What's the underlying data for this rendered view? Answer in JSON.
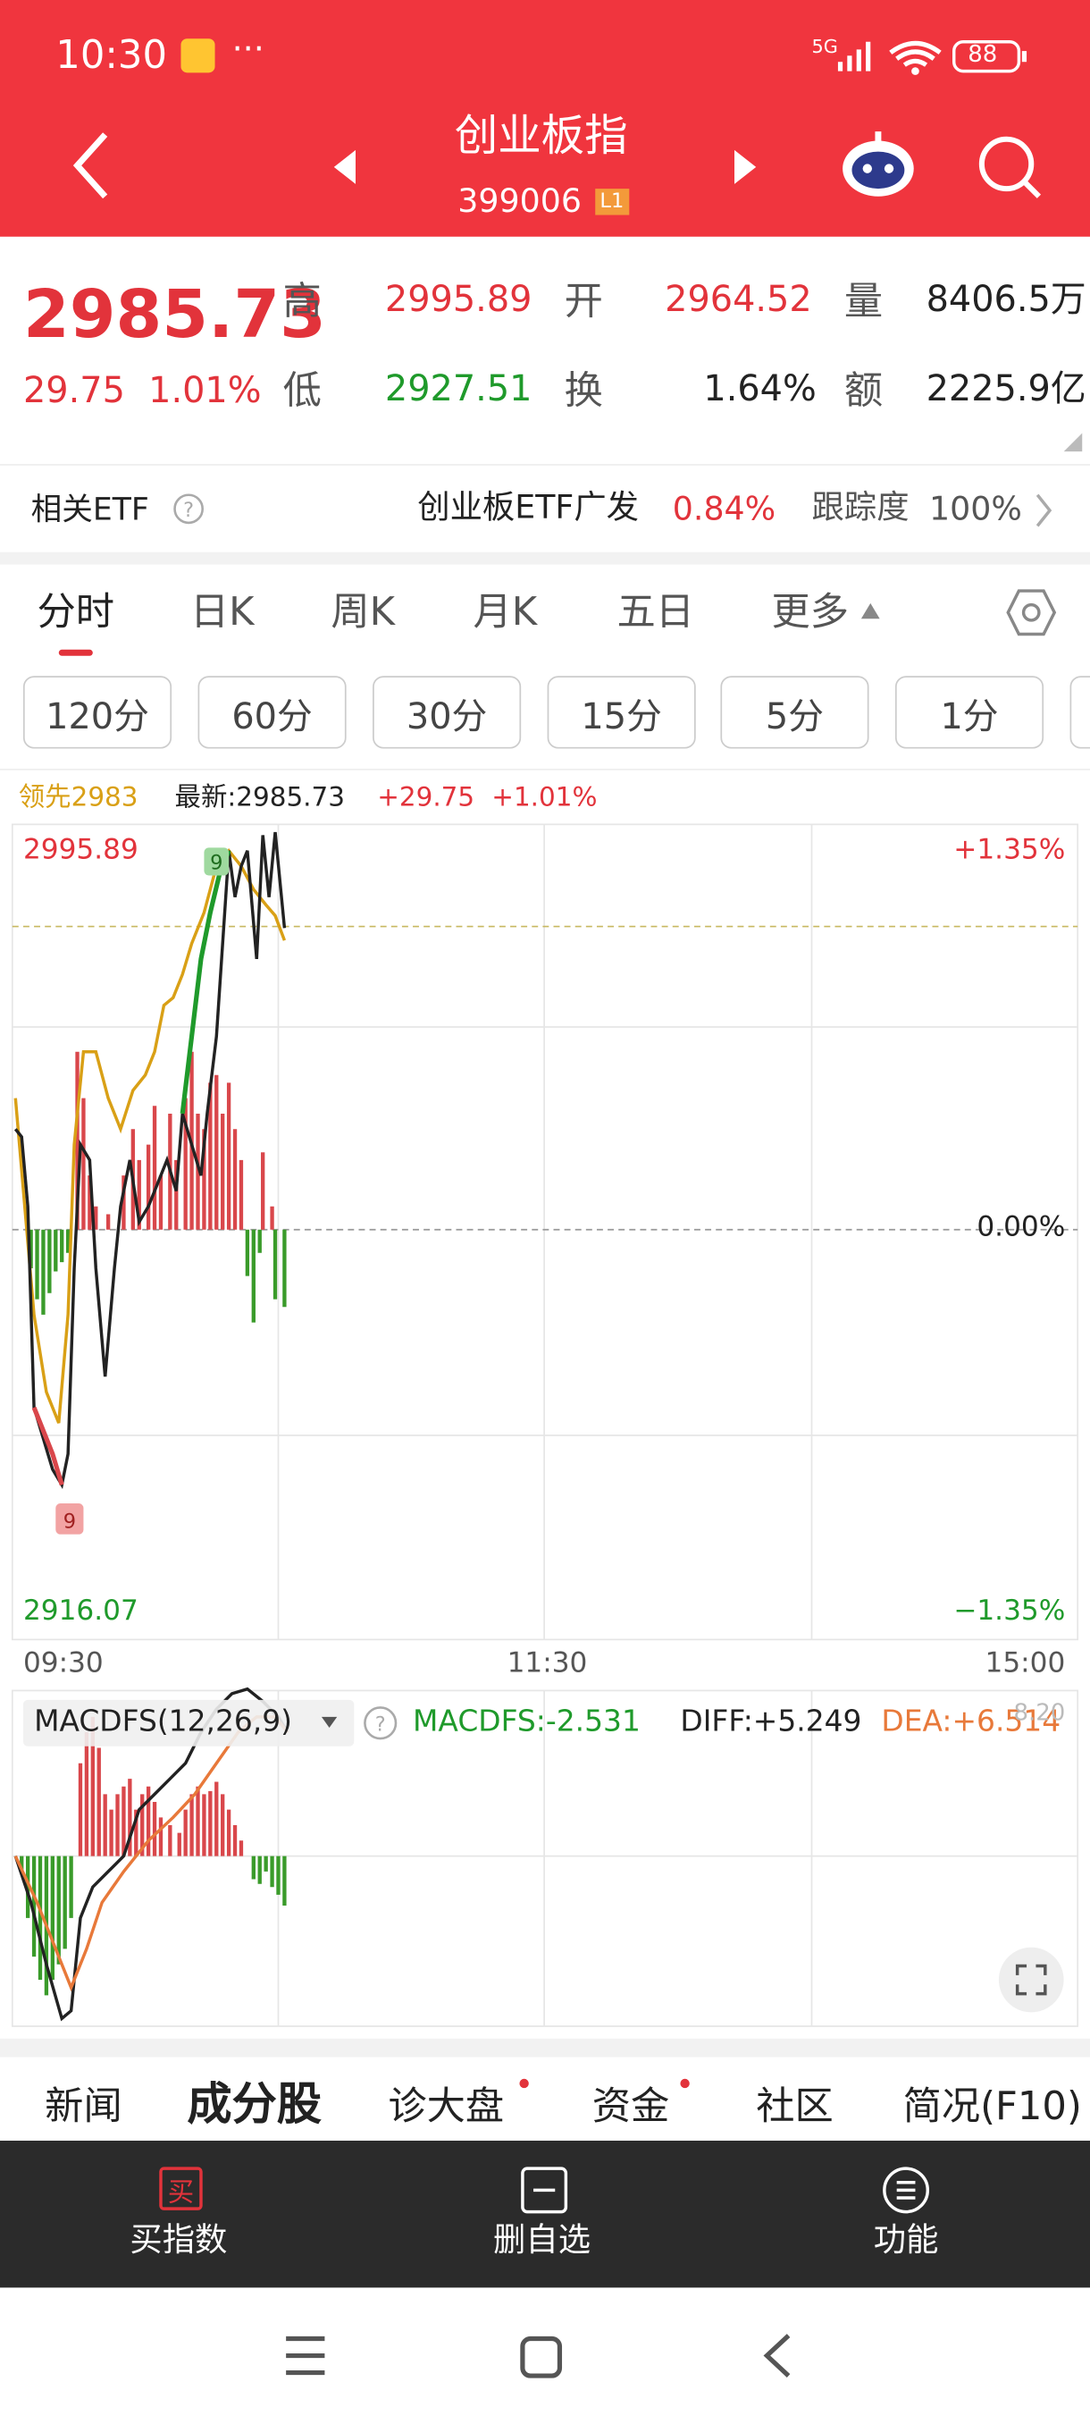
{
  "status": {
    "time": "10:30",
    "network": "5G",
    "battery": "88"
  },
  "header": {
    "title": "创业板指",
    "code": "399006",
    "level": "L1"
  },
  "quote": {
    "price": "2985.73",
    "change": "29.75",
    "percent": "1.01%",
    "fields": [
      {
        "label": "高",
        "value": "2995.89"
      },
      {
        "label": "开",
        "value": "2964.52"
      },
      {
        "label": "量",
        "value": "8406.5万"
      },
      {
        "label": "低",
        "value": "2927.51"
      },
      {
        "label": "换",
        "value": "1.64%"
      },
      {
        "label": "额",
        "value": "2225.9亿"
      }
    ]
  },
  "etf": {
    "label": "相关ETF",
    "name": "创业板ETF广发",
    "change": "0.84%",
    "tracking_label": "跟踪度",
    "tracking": "100%"
  },
  "tabs": [
    "分时",
    "日K",
    "周K",
    "月K",
    "五日",
    "更多"
  ],
  "intervals": [
    "120分",
    "60分",
    "30分",
    "15分",
    "5分",
    "1分"
  ],
  "chart": {
    "lead": "领先2983",
    "latest": "最新:2985.73",
    "change": "+29.75",
    "percent": "+1.01%",
    "high": "2995.89",
    "high_pct": "+1.35%",
    "mid_pct": "0.00%",
    "low": "2916.07",
    "low_pct": "−1.35%",
    "times": [
      "09:30",
      "11:30",
      "15:00"
    ]
  },
  "macd": {
    "name": "MACDFS(12,26,9)",
    "macdfs": "MACDFS:-2.531",
    "diff": "DIFF:+5.249",
    "dea": "DEA:+6.514",
    "max": "8.20"
  },
  "bottom_tabs": [
    "新闻",
    "成分股",
    "诊大盘",
    "资金",
    "社区",
    "简况(F10)"
  ],
  "actions": {
    "buy_icon": "买",
    "buy": "买指数",
    "remove": "删自选",
    "functions": "功能"
  }
}
